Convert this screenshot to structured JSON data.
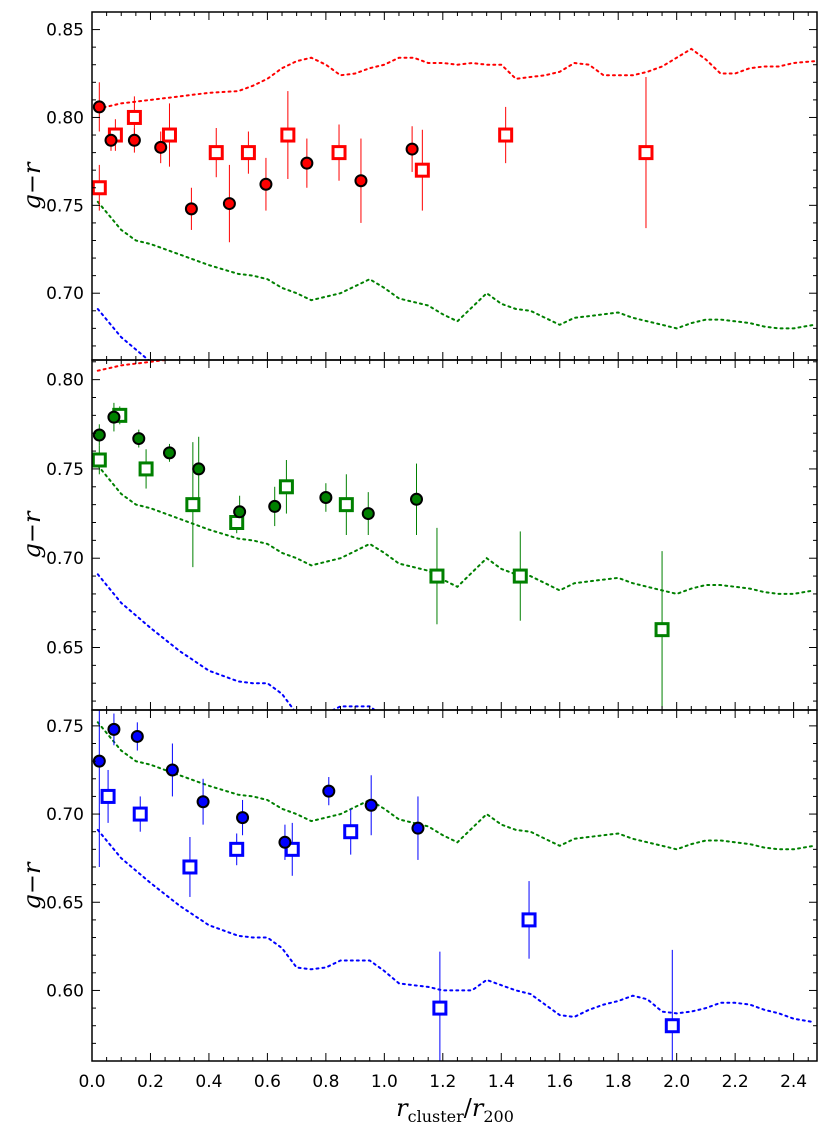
{
  "chart_data": {
    "type": "scatter",
    "layout": "three vertically stacked panels sharing x-axis",
    "xlabel_main": "r",
    "xlabel_sub": "cluster",
    "xlabel_denom_main": "r",
    "xlabel_denom_sub": "200",
    "ylabel_main": "g",
    "ylabel_sep": "−",
    "ylabel_end": "r",
    "xlim": [
      0.0,
      2.48
    ],
    "xticks": [
      0.0,
      0.2,
      0.4,
      0.6,
      0.8,
      1.0,
      1.2,
      1.4,
      1.6,
      1.8,
      2.0,
      2.2,
      2.4
    ],
    "xtick_labels": [
      "0.0",
      "0.2",
      "0.4",
      "0.6",
      "0.8",
      "1.0",
      "1.2",
      "1.4",
      "1.6",
      "1.8",
      "2.0",
      "2.2",
      "2.4"
    ],
    "colors": {
      "red": "#ff0000",
      "green": "#008000",
      "blue": "#0000ff",
      "edge": "#000000"
    },
    "reference_curves": {
      "red": {
        "x": [
          0.02,
          0.1,
          0.2,
          0.3,
          0.4,
          0.5,
          0.55,
          0.6,
          0.65,
          0.7,
          0.75,
          0.8,
          0.85,
          0.9,
          0.95,
          1.0,
          1.05,
          1.1,
          1.15,
          1.2,
          1.25,
          1.3,
          1.35,
          1.4,
          1.45,
          1.5,
          1.55,
          1.6,
          1.65,
          1.7,
          1.75,
          1.8,
          1.85,
          1.9,
          1.95,
          2.0,
          2.05,
          2.1,
          2.15,
          2.2,
          2.25,
          2.3,
          2.35,
          2.4,
          2.47
        ],
        "y": [
          0.805,
          0.808,
          0.81,
          0.812,
          0.814,
          0.815,
          0.818,
          0.822,
          0.828,
          0.832,
          0.834,
          0.83,
          0.824,
          0.825,
          0.828,
          0.83,
          0.834,
          0.834,
          0.831,
          0.831,
          0.83,
          0.831,
          0.83,
          0.83,
          0.822,
          0.823,
          0.824,
          0.826,
          0.831,
          0.83,
          0.824,
          0.824,
          0.824,
          0.826,
          0.829,
          0.834,
          0.839,
          0.833,
          0.825,
          0.825,
          0.828,
          0.829,
          0.829,
          0.831,
          0.832
        ]
      },
      "green": {
        "x": [
          0.02,
          0.1,
          0.15,
          0.2,
          0.3,
          0.4,
          0.5,
          0.55,
          0.6,
          0.65,
          0.7,
          0.75,
          0.8,
          0.85,
          0.9,
          0.95,
          1.0,
          1.05,
          1.1,
          1.15,
          1.2,
          1.25,
          1.3,
          1.35,
          1.4,
          1.45,
          1.5,
          1.55,
          1.6,
          1.65,
          1.7,
          1.75,
          1.8,
          1.85,
          1.9,
          1.95,
          2.0,
          2.05,
          2.1,
          2.15,
          2.2,
          2.25,
          2.3,
          2.35,
          2.4,
          2.47
        ],
        "y": [
          0.752,
          0.736,
          0.73,
          0.728,
          0.722,
          0.716,
          0.711,
          0.71,
          0.708,
          0.703,
          0.7,
          0.696,
          0.698,
          0.7,
          0.704,
          0.708,
          0.703,
          0.697,
          0.695,
          0.693,
          0.688,
          0.684,
          0.692,
          0.7,
          0.694,
          0.691,
          0.69,
          0.686,
          0.682,
          0.686,
          0.687,
          0.688,
          0.689,
          0.686,
          0.684,
          0.682,
          0.68,
          0.683,
          0.685,
          0.685,
          0.684,
          0.683,
          0.681,
          0.68,
          0.68,
          0.682
        ]
      },
      "blue": {
        "x": [
          0.02,
          0.1,
          0.2,
          0.3,
          0.4,
          0.5,
          0.55,
          0.6,
          0.65,
          0.7,
          0.75,
          0.8,
          0.85,
          0.9,
          0.95,
          1.0,
          1.05,
          1.1,
          1.15,
          1.2,
          1.25,
          1.3,
          1.35,
          1.4,
          1.45,
          1.5,
          1.55,
          1.6,
          1.65,
          1.7,
          1.75,
          1.8,
          1.85,
          1.9,
          1.95,
          2.0,
          2.05,
          2.1,
          2.15,
          2.2,
          2.25,
          2.3,
          2.35,
          2.4,
          2.47
        ],
        "y": [
          0.691,
          0.675,
          0.661,
          0.648,
          0.637,
          0.631,
          0.63,
          0.63,
          0.624,
          0.613,
          0.612,
          0.613,
          0.617,
          0.617,
          0.617,
          0.611,
          0.604,
          0.603,
          0.602,
          0.6,
          0.6,
          0.6,
          0.606,
          0.603,
          0.6,
          0.598,
          0.592,
          0.586,
          0.585,
          0.589,
          0.592,
          0.594,
          0.597,
          0.595,
          0.588,
          0.587,
          0.588,
          0.59,
          0.593,
          0.593,
          0.592,
          0.589,
          0.587,
          0.584,
          0.582
        ]
      }
    },
    "panels": [
      {
        "ylim": [
          0.662,
          0.86
        ],
        "yticks": [
          0.7,
          0.75,
          0.8,
          0.85
        ],
        "ytick_labels": [
          "0.70",
          "0.75",
          "0.80",
          "0.85"
        ],
        "color": "red",
        "circles": [
          {
            "x": 0.025,
            "y": 0.806,
            "err": 0.014
          },
          {
            "x": 0.065,
            "y": 0.787,
            "err": 0.006
          },
          {
            "x": 0.145,
            "y": 0.787,
            "err": 0.007
          },
          {
            "x": 0.235,
            "y": 0.783,
            "err": 0.009
          },
          {
            "x": 0.34,
            "y": 0.748,
            "err": 0.012
          },
          {
            "x": 0.47,
            "y": 0.751,
            "err": 0.022
          },
          {
            "x": 0.595,
            "y": 0.762,
            "err": 0.015
          },
          {
            "x": 0.735,
            "y": 0.774,
            "err": 0.014
          },
          {
            "x": 0.92,
            "y": 0.764,
            "err": 0.024
          },
          {
            "x": 1.095,
            "y": 0.782,
            "err": 0.013
          }
        ],
        "squares": [
          {
            "x": 0.025,
            "y": 0.76,
            "err": 0.013
          },
          {
            "x": 0.08,
            "y": 0.79,
            "err": 0.009
          },
          {
            "x": 0.145,
            "y": 0.8,
            "err": 0.012
          },
          {
            "x": 0.265,
            "y": 0.79,
            "err": 0.018
          },
          {
            "x": 0.425,
            "y": 0.78,
            "err": 0.014
          },
          {
            "x": 0.535,
            "y": 0.78,
            "err": 0.012
          },
          {
            "x": 0.67,
            "y": 0.79,
            "err": 0.025
          },
          {
            "x": 0.845,
            "y": 0.78,
            "err": 0.016
          },
          {
            "x": 1.13,
            "y": 0.77,
            "err": 0.023
          },
          {
            "x": 1.415,
            "y": 0.79,
            "err": 0.016
          },
          {
            "x": 1.895,
            "y": 0.78,
            "err": 0.043
          }
        ]
      },
      {
        "ylim": [
          0.615,
          0.811
        ],
        "yticks": [
          0.65,
          0.7,
          0.75,
          0.8
        ],
        "ytick_labels": [
          "0.65",
          "0.70",
          "0.75",
          "0.80"
        ],
        "color": "green",
        "circles": [
          {
            "x": 0.025,
            "y": 0.769,
            "err": 0.006
          },
          {
            "x": 0.075,
            "y": 0.779,
            "err": 0.008
          },
          {
            "x": 0.16,
            "y": 0.767,
            "err": 0.005
          },
          {
            "x": 0.265,
            "y": 0.759,
            "err": 0.005
          },
          {
            "x": 0.365,
            "y": 0.75,
            "err": 0.018
          },
          {
            "x": 0.505,
            "y": 0.726,
            "err": 0.009
          },
          {
            "x": 0.625,
            "y": 0.729,
            "err": 0.011
          },
          {
            "x": 0.8,
            "y": 0.734,
            "err": 0.008
          },
          {
            "x": 0.945,
            "y": 0.725,
            "err": 0.012
          },
          {
            "x": 1.11,
            "y": 0.733,
            "err": 0.02
          }
        ],
        "squares": [
          {
            "x": 0.025,
            "y": 0.755,
            "err": 0.008
          },
          {
            "x": 0.095,
            "y": 0.78,
            "err": 0.005
          },
          {
            "x": 0.185,
            "y": 0.75,
            "err": 0.011
          },
          {
            "x": 0.345,
            "y": 0.73,
            "err": 0.035
          },
          {
            "x": 0.495,
            "y": 0.72,
            "err": 0.006
          },
          {
            "x": 0.665,
            "y": 0.74,
            "err": 0.015
          },
          {
            "x": 0.87,
            "y": 0.73,
            "err": 0.017
          },
          {
            "x": 1.18,
            "y": 0.69,
            "err": 0.027
          },
          {
            "x": 1.465,
            "y": 0.69,
            "err": 0.025
          },
          {
            "x": 1.95,
            "y": 0.66,
            "err": 0.044
          }
        ]
      },
      {
        "ylim": [
          0.56,
          0.759
        ],
        "yticks": [
          0.6,
          0.65,
          0.7,
          0.75
        ],
        "ytick_labels": [
          "0.60",
          "0.65",
          "0.70",
          "0.75"
        ],
        "color": "blue",
        "circles": [
          {
            "x": 0.025,
            "y": 0.73,
            "err": 0.06
          },
          {
            "x": 0.075,
            "y": 0.748,
            "err": 0.009
          },
          {
            "x": 0.155,
            "y": 0.744,
            "err": 0.008
          },
          {
            "x": 0.275,
            "y": 0.725,
            "err": 0.015
          },
          {
            "x": 0.38,
            "y": 0.707,
            "err": 0.013
          },
          {
            "x": 0.515,
            "y": 0.698,
            "err": 0.01
          },
          {
            "x": 0.66,
            "y": 0.684,
            "err": 0.01
          },
          {
            "x": 0.81,
            "y": 0.713,
            "err": 0.008
          },
          {
            "x": 0.955,
            "y": 0.705,
            "err": 0.017
          },
          {
            "x": 1.115,
            "y": 0.692,
            "err": 0.018
          }
        ],
        "squares": [
          {
            "x": 0.055,
            "y": 0.71,
            "err": 0.015
          },
          {
            "x": 0.165,
            "y": 0.7,
            "err": 0.01
          },
          {
            "x": 0.335,
            "y": 0.67,
            "err": 0.017
          },
          {
            "x": 0.495,
            "y": 0.68,
            "err": 0.009
          },
          {
            "x": 0.685,
            "y": 0.68,
            "err": 0.015
          },
          {
            "x": 0.885,
            "y": 0.69,
            "err": 0.013
          },
          {
            "x": 1.19,
            "y": 0.59,
            "err": 0.032
          },
          {
            "x": 1.495,
            "y": 0.64,
            "err": 0.022
          },
          {
            "x": 1.985,
            "y": 0.58,
            "err": 0.043
          }
        ]
      }
    ]
  }
}
